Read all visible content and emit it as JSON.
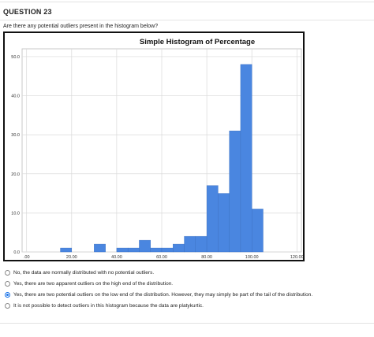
{
  "question": {
    "header": "QUESTION 23",
    "text": "Are there any potential outliers present in the histogram below?"
  },
  "chart_data": {
    "type": "bar",
    "title": "Simple Histogram of Percentage",
    "xlabel": "",
    "ylabel": "",
    "x_ticks": [
      ".00",
      "20.00",
      "40.00",
      "60.00",
      "80.00",
      "100.00",
      "120.00"
    ],
    "y_ticks": [
      "0.0",
      "10.0",
      "20.0",
      "30.0",
      "40.0",
      "50.0"
    ],
    "xlim": [
      -2,
      122
    ],
    "ylim": [
      0,
      52
    ],
    "bin_width": 5,
    "bins": [
      {
        "start": 15,
        "value": 1
      },
      {
        "start": 30,
        "value": 2
      },
      {
        "start": 40,
        "value": 1
      },
      {
        "start": 45,
        "value": 1
      },
      {
        "start": 50,
        "value": 3
      },
      {
        "start": 55,
        "value": 1
      },
      {
        "start": 60,
        "value": 1
      },
      {
        "start": 65,
        "value": 2
      },
      {
        "start": 70,
        "value": 4
      },
      {
        "start": 75,
        "value": 4
      },
      {
        "start": 80,
        "value": 17
      },
      {
        "start": 85,
        "value": 15
      },
      {
        "start": 90,
        "value": 31
      },
      {
        "start": 95,
        "value": 48
      },
      {
        "start": 100,
        "value": 11
      }
    ],
    "bar_color": "#4a86e0",
    "grid": true
  },
  "options": [
    {
      "label": "No, the data are normally distributed with no potential outliers.",
      "selected": false
    },
    {
      "label": "Yes, there are two apparent outliers on the high end of the distribution.",
      "selected": false
    },
    {
      "label": "Yes, there are two potential outliers on the low end of the distribution. However, they may simply be part of the tail of the distribution.",
      "selected": true
    },
    {
      "label": "It is not possible to detect outliers in this histogram because the data are platykurtic.",
      "selected": false
    }
  ],
  "colors": {
    "accent": "#1a73e8",
    "bar": "#4a86e0"
  }
}
